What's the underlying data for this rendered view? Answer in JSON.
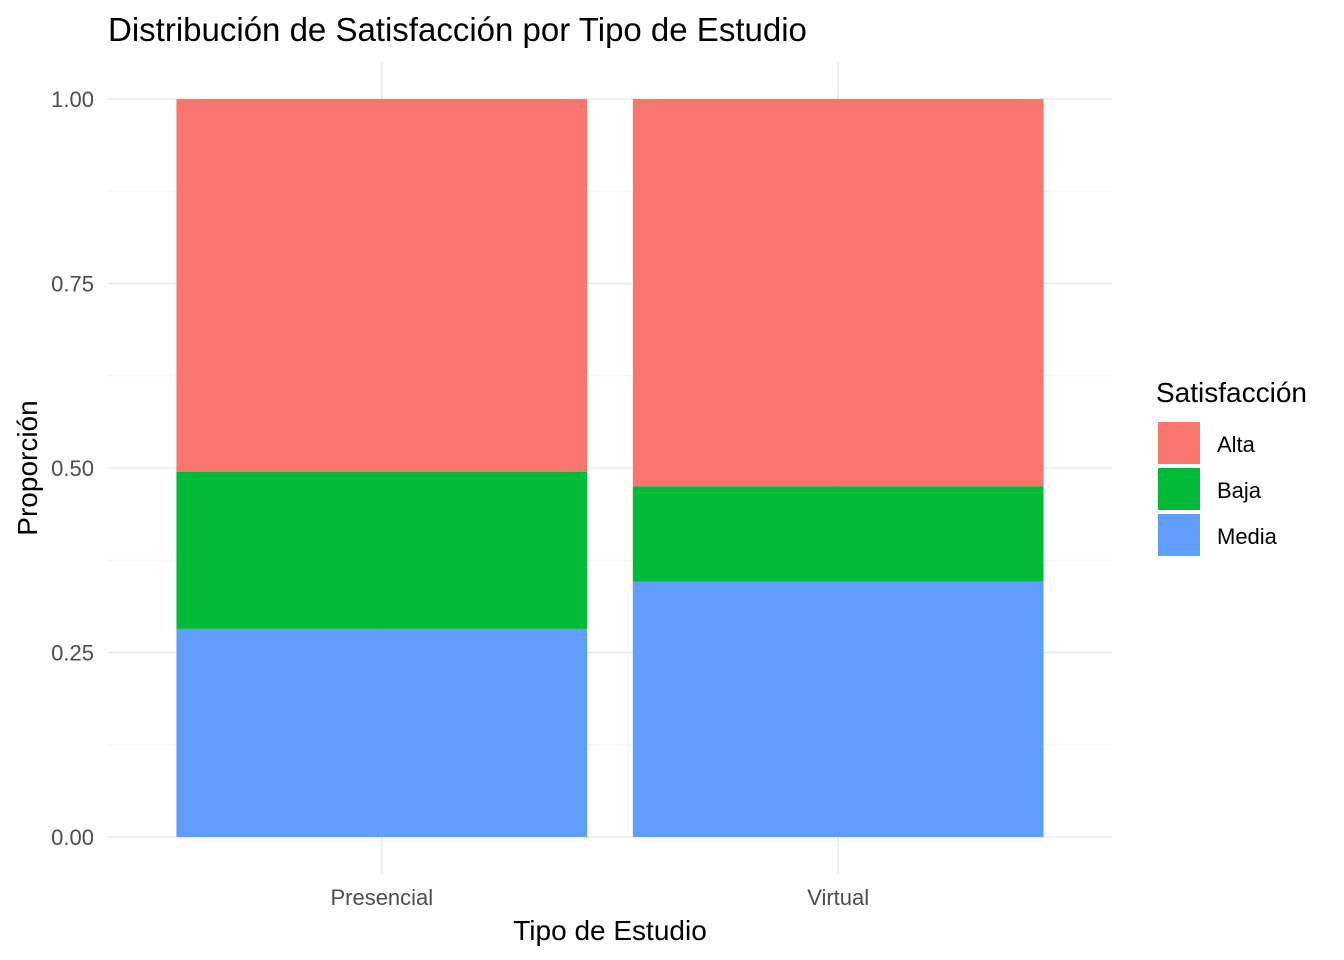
{
  "chart_data": {
    "type": "bar",
    "stacked": true,
    "title": "Distribución de Satisfacción por Tipo de Estudio",
    "xlabel": "Tipo de Estudio",
    "ylabel": "Proporción",
    "categories": [
      "Presencial",
      "Virtual"
    ],
    "series": [
      {
        "name": "Media",
        "color": "#619CFF",
        "values": [
          0.282,
          0.346
        ]
      },
      {
        "name": "Baja",
        "color": "#00BA38",
        "values": [
          0.213,
          0.129
        ]
      },
      {
        "name": "Alta",
        "color": "#F8766D",
        "values": [
          0.505,
          0.525
        ]
      }
    ],
    "ylim": [
      0,
      1
    ],
    "yticks": [
      "0.00",
      "0.25",
      "0.50",
      "0.75",
      "1.00"
    ],
    "ytick_values": [
      0,
      0.25,
      0.5,
      0.75,
      1
    ],
    "grid": true,
    "legend": {
      "title": "Satisfacción",
      "position": "right",
      "entries": [
        {
          "label": "Alta",
          "color": "#F8766D"
        },
        {
          "label": "Baja",
          "color": "#00BA38"
        },
        {
          "label": "Media",
          "color": "#619CFF"
        }
      ]
    }
  }
}
